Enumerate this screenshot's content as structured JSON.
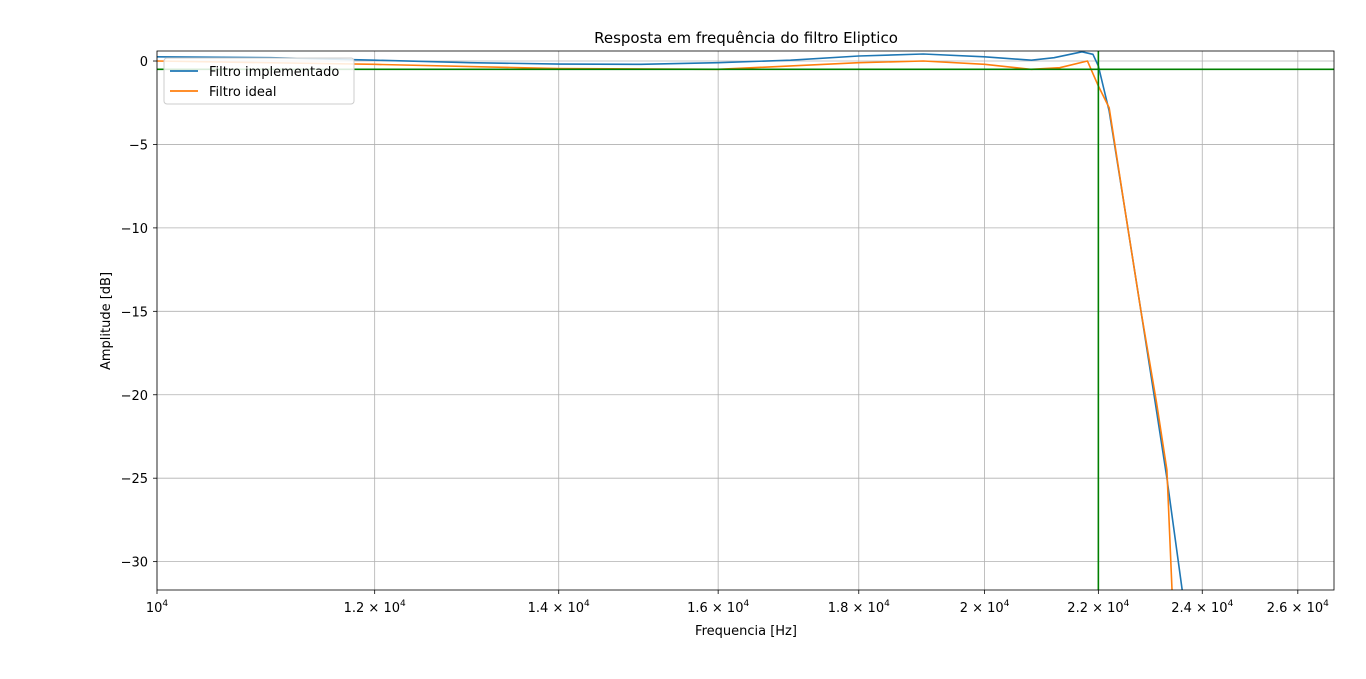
{
  "chart_data": {
    "type": "line",
    "title": "Resposta em frequência do filtro Eliptico",
    "xlabel": "Frequencia [Hz]",
    "ylabel": "Amplitude [dB]",
    "x_scale": "log",
    "xlim": [
      10000,
      26800
    ],
    "ylim": [
      -31.7,
      0.6
    ],
    "x_ticks": [
      {
        "value": 10000,
        "mantissa": "",
        "exponent": "4"
      },
      {
        "value": 12000,
        "mantissa": "1.2",
        "exponent": "4"
      },
      {
        "value": 14000,
        "mantissa": "1.4",
        "exponent": "4"
      },
      {
        "value": 16000,
        "mantissa": "1.6",
        "exponent": "4"
      },
      {
        "value": 18000,
        "mantissa": "1.8",
        "exponent": "4"
      },
      {
        "value": 20000,
        "mantissa": "2",
        "exponent": "4"
      },
      {
        "value": 22000,
        "mantissa": "2.2",
        "exponent": "4"
      },
      {
        "value": 24000,
        "mantissa": "2.4",
        "exponent": "4"
      },
      {
        "value": 26000,
        "mantissa": "2.6",
        "exponent": "4"
      }
    ],
    "y_ticks": [
      {
        "value": 0,
        "label": "0"
      },
      {
        "value": -5,
        "label": "−5"
      },
      {
        "value": -10,
        "label": "−10"
      },
      {
        "value": -15,
        "label": "−15"
      },
      {
        "value": -20,
        "label": "−20"
      },
      {
        "value": -25,
        "label": "−25"
      },
      {
        "value": -30,
        "label": "−30"
      }
    ],
    "grid": true,
    "legend_position": "top-left",
    "reference_lines": {
      "vertical_x": 22000,
      "horizontal_y": -0.5,
      "color": "#007f00"
    },
    "series": [
      {
        "name": "Filtro implementado",
        "color": "#1f77b4",
        "points": [
          [
            10000,
            0.25
          ],
          [
            11000,
            0.2
          ],
          [
            12000,
            0.05
          ],
          [
            13000,
            -0.1
          ],
          [
            14000,
            -0.18
          ],
          [
            15000,
            -0.2
          ],
          [
            16000,
            -0.1
          ],
          [
            17000,
            0.05
          ],
          [
            18000,
            0.3
          ],
          [
            19000,
            0.42
          ],
          [
            20000,
            0.25
          ],
          [
            20800,
            0.05
          ],
          [
            21200,
            0.2
          ],
          [
            21700,
            0.55
          ],
          [
            21900,
            0.4
          ],
          [
            22000,
            -0.3
          ],
          [
            22200,
            -3.0
          ],
          [
            22500,
            -9.0
          ],
          [
            22800,
            -15.0
          ],
          [
            23100,
            -21.0
          ],
          [
            23300,
            -25.0
          ],
          [
            23600,
            -31.7
          ]
        ]
      },
      {
        "name": "Filtro ideal",
        "color": "#ff7f0e",
        "points": [
          [
            10000,
            0.0
          ],
          [
            12000,
            -0.2
          ],
          [
            14000,
            -0.45
          ],
          [
            16000,
            -0.5
          ],
          [
            18000,
            -0.1
          ],
          [
            19000,
            0.0
          ],
          [
            20000,
            -0.2
          ],
          [
            20800,
            -0.5
          ],
          [
            21300,
            -0.4
          ],
          [
            21800,
            0.0
          ],
          [
            22000,
            -1.5
          ],
          [
            22200,
            -2.8
          ],
          [
            22500,
            -9.0
          ],
          [
            22800,
            -15.0
          ],
          [
            23100,
            -20.5
          ],
          [
            23300,
            -24.5
          ],
          [
            23400,
            -31.7
          ]
        ]
      }
    ]
  }
}
